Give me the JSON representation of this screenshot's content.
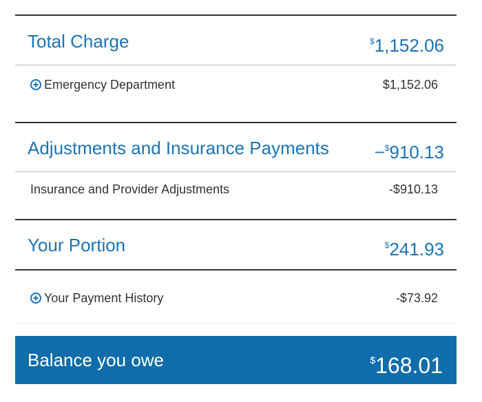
{
  "sections": [
    {
      "title": "Total Charge",
      "total": {
        "symbol": "$",
        "amount": "1,152.06"
      },
      "rows": [
        {
          "label": "Emergency Department",
          "amount": "$1,152.06"
        }
      ]
    },
    {
      "title": "Adjustments and Insurance Payments",
      "total": {
        "sign": "−",
        "symbol": "$",
        "amount": "910.13"
      },
      "rows": [
        {
          "label": "Insurance and Provider Adjustments",
          "amount": "-$910.13"
        }
      ]
    },
    {
      "title": "Your Portion",
      "total": {
        "symbol": "$",
        "amount": "241.93"
      },
      "rows": [
        {
          "label": "Your Payment History",
          "amount": "-$73.92"
        }
      ]
    }
  ],
  "balance": {
    "label": "Balance you owe",
    "symbol": "$",
    "amount": "168.01"
  }
}
